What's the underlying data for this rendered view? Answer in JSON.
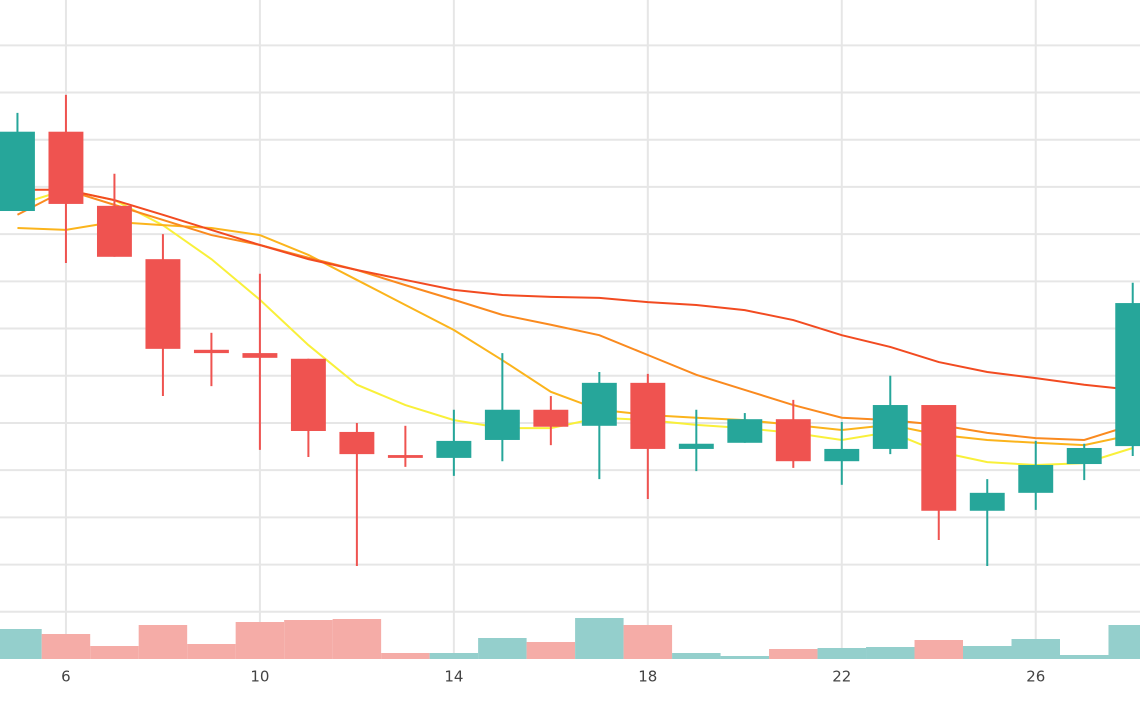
{
  "chart_data": {
    "type": "candlestick",
    "x": [
      5,
      6,
      7,
      8,
      9,
      10,
      11,
      12,
      13,
      14,
      15,
      16,
      17,
      18,
      19,
      20,
      21,
      22,
      23,
      24,
      25,
      26,
      27,
      28
    ],
    "open": [
      9.49,
      11.17,
      9.6,
      8.47,
      6.55,
      6.48,
      6.36,
      4.81,
      4.32,
      4.26,
      4.64,
      5.28,
      4.94,
      5.85,
      4.45,
      4.58,
      5.08,
      4.19,
      4.45,
      5.38,
      3.14,
      3.52,
      4.13,
      4.51
    ],
    "high": [
      11.57,
      11.95,
      10.28,
      9.0,
      6.91,
      8.16,
      6.36,
      5.0,
      4.94,
      5.28,
      6.48,
      5.57,
      6.08,
      6.04,
      5.28,
      5.21,
      5.49,
      5.02,
      6.0,
      5.38,
      3.81,
      4.62,
      4.56,
      7.97
    ],
    "low": [
      9.49,
      8.39,
      8.52,
      5.57,
      5.78,
      4.43,
      4.28,
      1.97,
      4.07,
      3.88,
      4.19,
      4.53,
      3.81,
      3.39,
      3.98,
      4.58,
      4.05,
      3.69,
      4.34,
      2.52,
      1.97,
      3.16,
      3.79,
      4.3
    ],
    "close": [
      11.17,
      9.64,
      8.52,
      6.57,
      6.48,
      6.38,
      4.83,
      4.34,
      4.26,
      4.62,
      5.28,
      4.92,
      5.85,
      4.45,
      4.56,
      5.08,
      4.19,
      4.45,
      5.38,
      3.14,
      3.52,
      4.11,
      4.47,
      7.54
    ],
    "up_color": "#26a69a",
    "down_color": "#ef5350",
    "series": [
      {
        "color": "#f9f03a",
        "values": [
          9.62,
          9.94,
          9.72,
          9.19,
          8.47,
          7.61,
          6.65,
          5.81,
          5.38,
          5.06,
          4.89,
          4.89,
          5.11,
          5.06,
          4.96,
          4.89,
          4.79,
          4.64,
          4.81,
          4.39,
          4.17,
          4.11,
          4.15,
          4.47
        ]
      },
      {
        "color": "#fbb41c",
        "values": [
          9.13,
          9.09,
          9.26,
          9.19,
          9.13,
          8.98,
          8.56,
          8.03,
          7.5,
          6.97,
          6.33,
          5.66,
          5.28,
          5.17,
          5.11,
          5.06,
          4.96,
          4.85,
          4.96,
          4.75,
          4.64,
          4.58,
          4.53,
          4.75
        ]
      },
      {
        "color": "#fa8a1f",
        "values": [
          9.41,
          9.94,
          9.62,
          9.3,
          8.98,
          8.77,
          8.5,
          8.24,
          7.92,
          7.61,
          7.29,
          7.08,
          6.86,
          6.44,
          6.02,
          5.7,
          5.38,
          5.11,
          5.06,
          4.96,
          4.79,
          4.68,
          4.64,
          4.96
        ]
      },
      {
        "color": "#f24b21",
        "values": [
          9.94,
          9.94,
          9.72,
          9.41,
          9.09,
          8.77,
          8.47,
          8.24,
          8.03,
          7.82,
          7.71,
          7.67,
          7.65,
          7.56,
          7.5,
          7.39,
          7.18,
          6.86,
          6.61,
          6.29,
          6.08,
          5.95,
          5.81,
          5.7
        ]
      }
    ],
    "volume": {
      "axis": "y2",
      "up_color": "#94cfcc",
      "down_color": "#f5aca7",
      "values": [
        30,
        25,
        13,
        34,
        15,
        37,
        39,
        40,
        6,
        6,
        21,
        17,
        41,
        34,
        6,
        3,
        10,
        11,
        12,
        19,
        13,
        20,
        4,
        34
      ]
    },
    "xlim": [
      4.64,
      28.15
    ],
    "xticks": [
      6,
      10,
      14,
      18,
      22,
      26
    ],
    "ylim": [
      0,
      13.96
    ],
    "yticks": [
      1,
      2,
      3,
      4,
      5,
      6,
      7,
      8,
      9,
      10,
      11,
      12,
      13
    ],
    "y2lim": [
      0,
      659
    ],
    "grid": true
  }
}
